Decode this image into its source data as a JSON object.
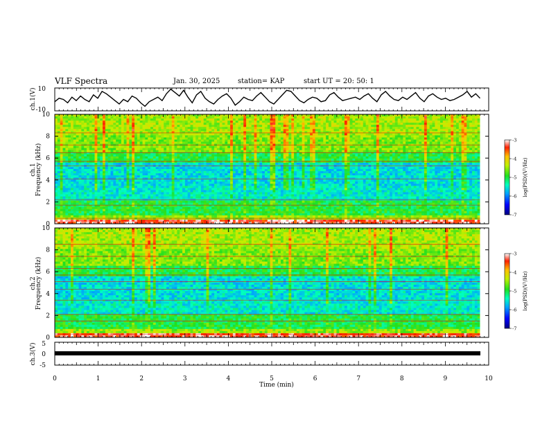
{
  "header": {
    "title": "VLF Spectra",
    "date": "Jan. 30, 2025",
    "station": "station= KAP",
    "start": "start  UT  =   20: 50: 1"
  },
  "chart_data": [
    {
      "type": "line",
      "name": "ch1-waveform",
      "ylabel": "ch.1(V)",
      "ylim": [
        -10,
        10
      ],
      "yticks": [
        "10",
        "-10"
      ],
      "xlim": [
        0,
        10
      ],
      "trace": [
        -2,
        1,
        0,
        -3,
        2,
        -1,
        3,
        0,
        -2,
        4,
        1,
        7,
        5,
        2,
        -1,
        -4,
        0,
        -2,
        3,
        1,
        -3,
        -6,
        -2,
        0,
        2,
        -1,
        5,
        9,
        6,
        3,
        8,
        2,
        -3,
        4,
        7,
        1,
        -2,
        -4,
        0,
        3,
        5,
        1,
        -5,
        -2,
        2,
        0,
        -1,
        3,
        6,
        2,
        -2,
        -4,
        0,
        4,
        8,
        7,
        3,
        -1,
        -3,
        0,
        2,
        1,
        -2,
        -1,
        4,
        6,
        2,
        -1,
        0,
        1,
        2,
        0,
        3,
        5,
        1,
        -2,
        4,
        7,
        3,
        0,
        -1,
        2,
        0,
        3,
        6,
        1,
        -2,
        3,
        5,
        2,
        0,
        1,
        -1,
        0,
        2,
        4,
        7,
        2,
        5,
        1
      ]
    },
    {
      "type": "heatmap",
      "name": "ch1-spectrogram",
      "ylabel": "ch.1",
      "ylabel2": "Frequency (kHz)",
      "ylim": [
        0,
        10
      ],
      "yticks": [
        "0",
        "2",
        "4",
        "6",
        "8",
        "10"
      ],
      "xlim": [
        0,
        10
      ],
      "colorbar": {
        "label": "log(PSD)(V²/Hz)",
        "ticks": [
          "-3",
          "-4",
          "-5",
          "-6",
          "-7"
        ],
        "range": [
          -7,
          -3
        ]
      }
    },
    {
      "type": "heatmap",
      "name": "ch2-spectrogram",
      "ylabel": "ch.2",
      "ylabel2": "Frequency (kHz)",
      "ylim": [
        0,
        10
      ],
      "yticks": [
        "0",
        "2",
        "4",
        "6",
        "8",
        "10"
      ],
      "xlim": [
        0,
        10
      ],
      "colorbar": {
        "label": "log(PSD)(V²/Hz)",
        "ticks": [
          "-3",
          "-4",
          "-5",
          "-6",
          "-7"
        ],
        "range": [
          -7,
          -3
        ]
      }
    },
    {
      "type": "line",
      "name": "ch3-waveform",
      "ylabel": "ch.3(V)",
      "ylim": [
        -5,
        5
      ],
      "yticks": [
        "5",
        "0",
        "-5"
      ],
      "xlim": [
        0,
        10
      ],
      "level": 0
    }
  ],
  "xaxis": {
    "label": "Time (min)",
    "ticks": [
      "0",
      "1",
      "2",
      "3",
      "4",
      "5",
      "6",
      "7",
      "8",
      "9",
      "10"
    ]
  }
}
